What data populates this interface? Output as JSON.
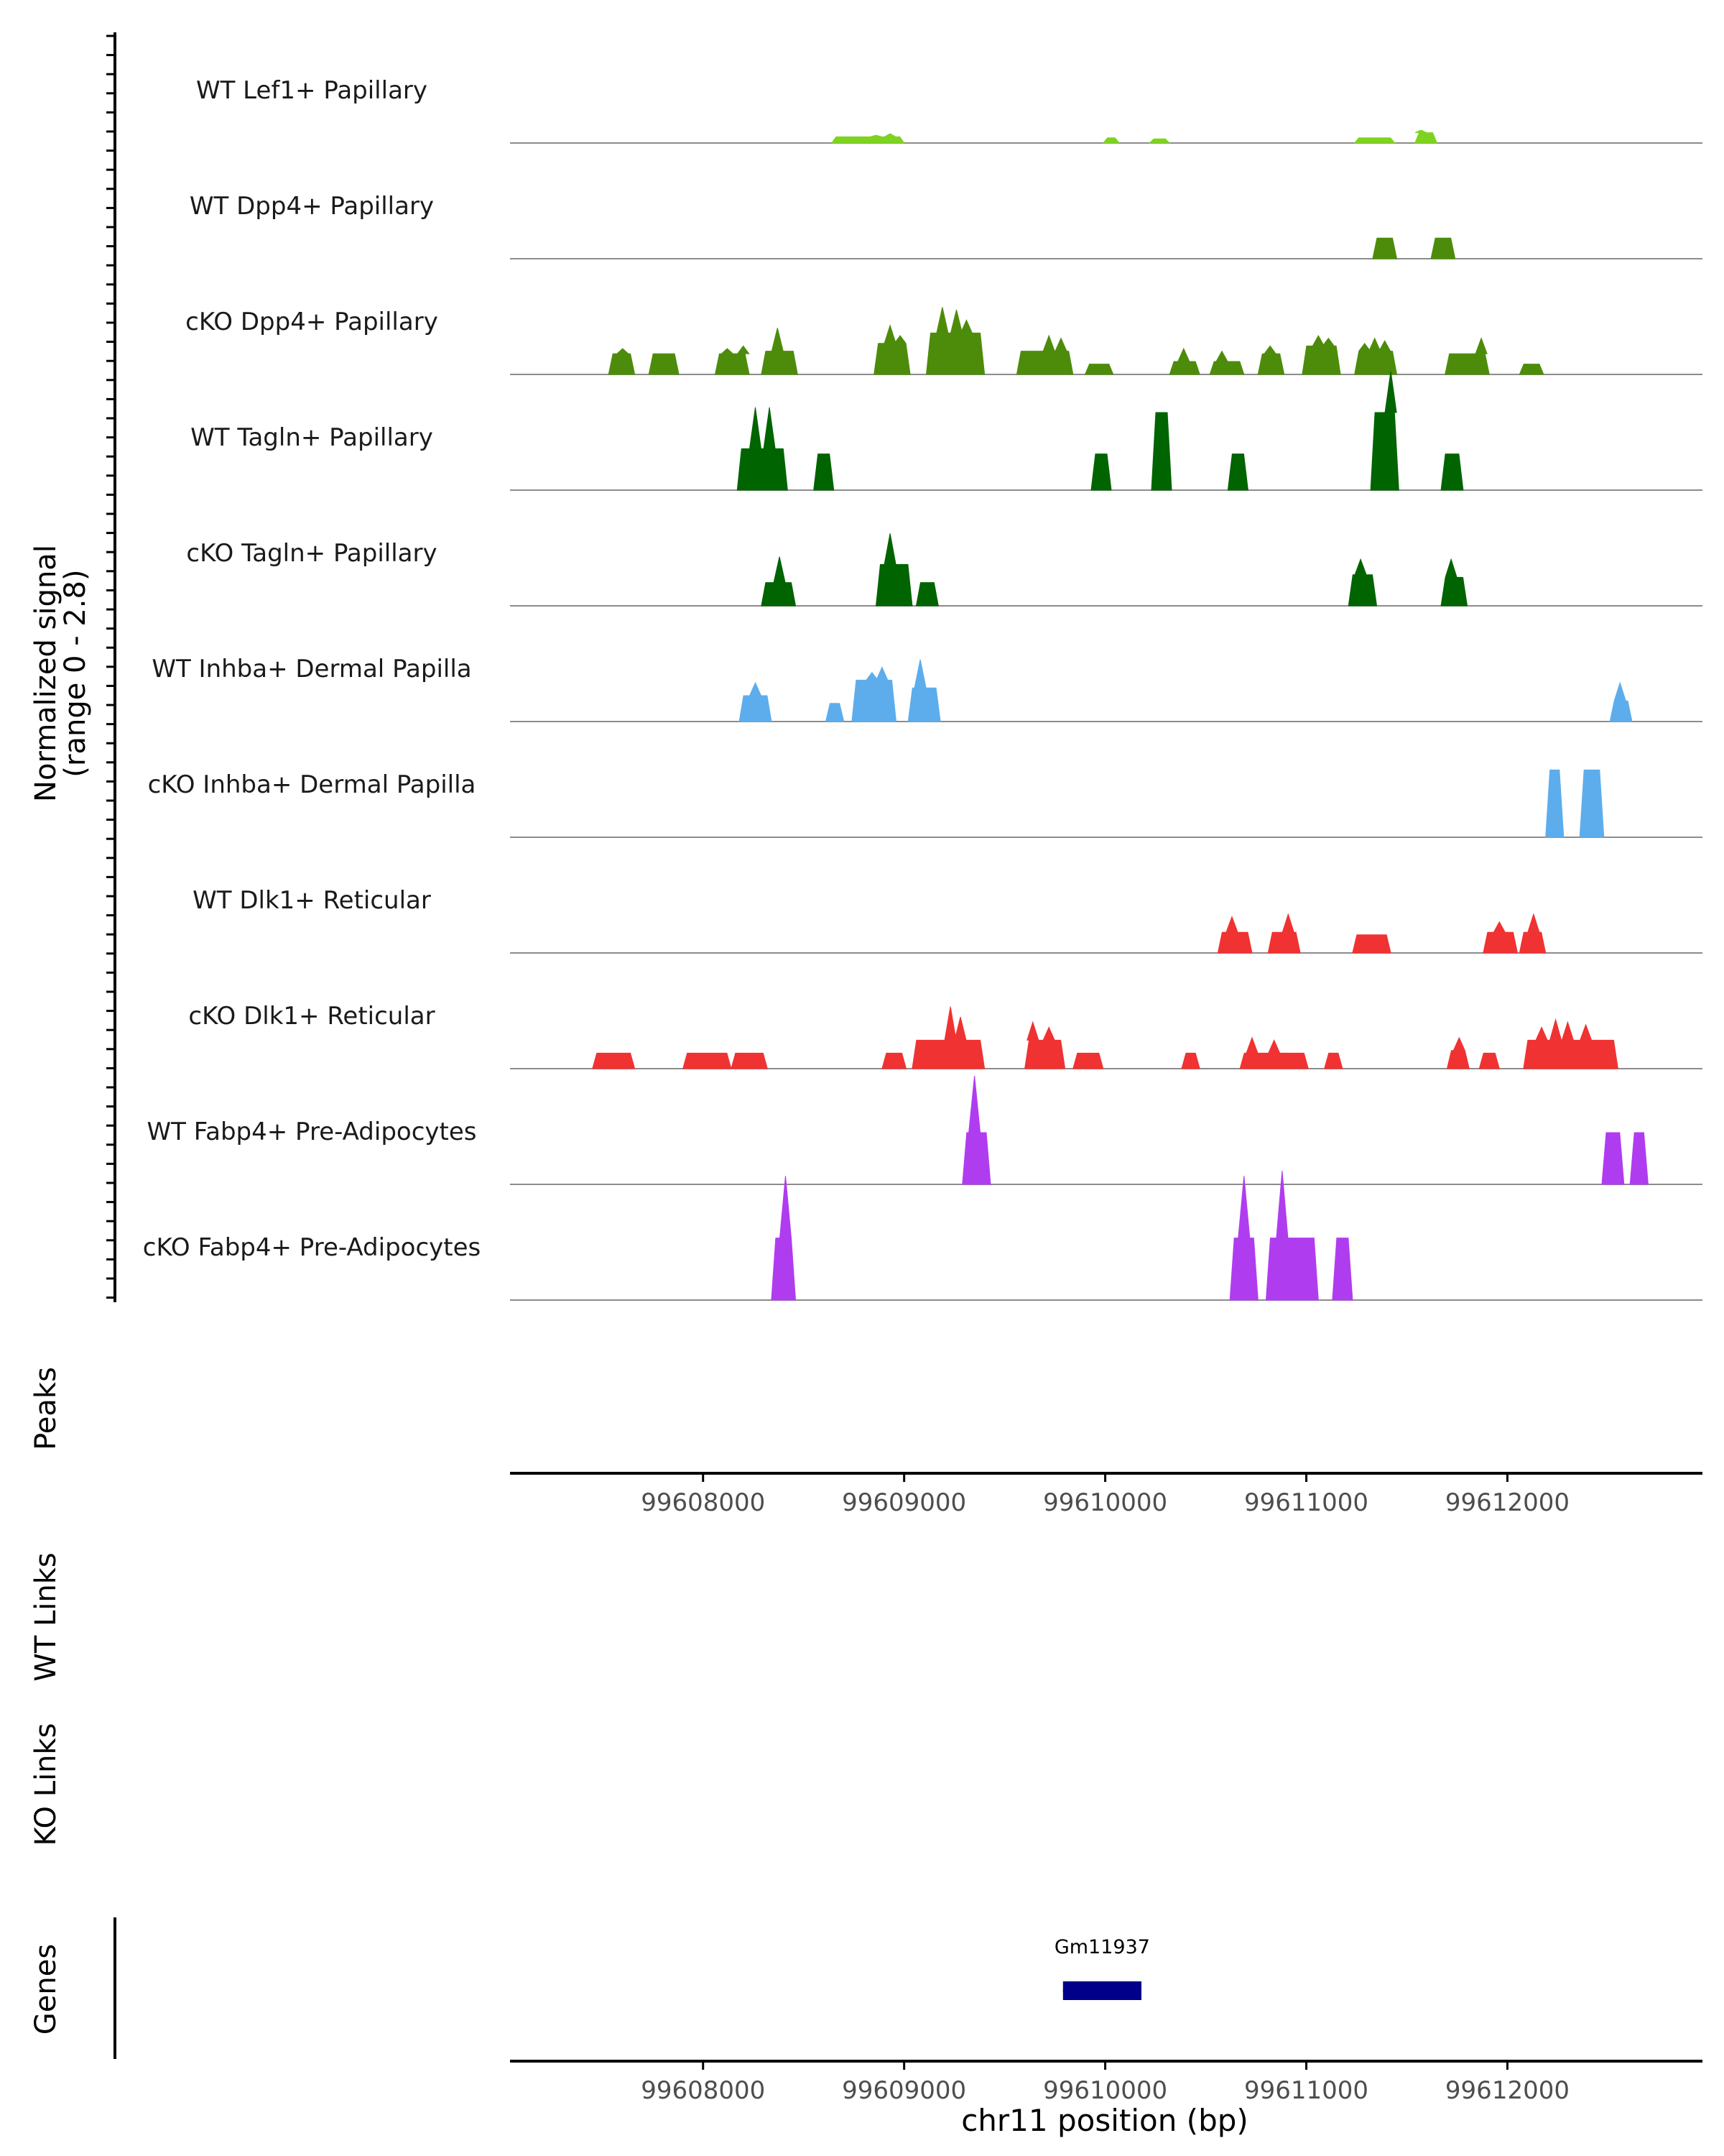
{
  "chart_data": {
    "type": "area",
    "title": "",
    "xlabel": "chr11 position (bp)",
    "signal_ylabel": [
      "Normalized signal",
      "(range 0 - 2.8)"
    ],
    "ylim": [
      0,
      2.8
    ],
    "xlim": [
      99607040,
      99612970
    ],
    "x_ticks": [
      99608000,
      99609000,
      99610000,
      99611000,
      99612000
    ],
    "x_tick_labels": [
      "99608000",
      "99609000",
      "99610000",
      "99611000",
      "99612000"
    ],
    "track_labels": {
      "peaks": "Peaks",
      "wt_links": "WT Links",
      "ko_links": "KO Links",
      "genes": "Genes"
    },
    "genes": [
      {
        "name": "Gm11937",
        "start": 99609790,
        "end": 99610180
      }
    ],
    "series": [
      {
        "name": "WT Lef1+ Papillary",
        "color": "#7ED321",
        "segments": [
          [
            99608640,
            99609000,
            0.12
          ],
          [
            99609990,
            99610070,
            0.1
          ],
          [
            99610220,
            99610320,
            0.08
          ],
          [
            99611240,
            99611440,
            0.1
          ],
          [
            99611540,
            99611650,
            0.2
          ]
        ],
        "spikes": [
          [
            99608860,
            0.15
          ],
          [
            99608930,
            0.18
          ],
          [
            99609000,
            0.12
          ],
          [
            99611570,
            0.25
          ]
        ]
      },
      {
        "name": "WT Dpp4+ Papillary",
        "color": "#4D8C0A",
        "segments": [
          [
            99611330,
            99611450,
            0.4
          ],
          [
            99611620,
            99611740,
            0.4
          ]
        ],
        "spikes": []
      },
      {
        "name": "cKO Dpp4+ Papillary",
        "color": "#4D8C0A",
        "segments": [
          [
            99607530,
            99607660,
            0.4
          ],
          [
            99607730,
            99607880,
            0.4
          ],
          [
            99608060,
            99608230,
            0.4
          ],
          [
            99608290,
            99608470,
            0.45
          ],
          [
            99608850,
            99609030,
            0.6
          ],
          [
            99609110,
            99609400,
            0.8
          ],
          [
            99609560,
            99609840,
            0.45
          ],
          [
            99609900,
            99610040,
            0.2
          ],
          [
            99610320,
            99610470,
            0.25
          ],
          [
            99610520,
            99610690,
            0.25
          ],
          [
            99610760,
            99610890,
            0.4
          ],
          [
            99610980,
            99611170,
            0.55
          ],
          [
            99611240,
            99611450,
            0.45
          ],
          [
            99611690,
            99611910,
            0.4
          ],
          [
            99612060,
            99612180,
            0.2
          ]
        ],
        "spikes": [
          [
            99607600,
            0.5
          ],
          [
            99608120,
            0.5
          ],
          [
            99608200,
            0.55
          ],
          [
            99608370,
            0.9
          ],
          [
            99608930,
            0.95
          ],
          [
            99608980,
            0.75
          ],
          [
            99609190,
            1.3
          ],
          [
            99609260,
            1.25
          ],
          [
            99609310,
            1.05
          ],
          [
            99609720,
            0.75
          ],
          [
            99609780,
            0.7
          ],
          [
            99610390,
            0.5
          ],
          [
            99610580,
            0.45
          ],
          [
            99610820,
            0.55
          ],
          [
            99611060,
            0.75
          ],
          [
            99611110,
            0.7
          ],
          [
            99611290,
            0.6
          ],
          [
            99611340,
            0.7
          ],
          [
            99611390,
            0.65
          ],
          [
            99611870,
            0.7
          ]
        ]
      },
      {
        "name": "WT Tagln+ Papillary",
        "color": "#006400",
        "segments": [
          [
            99608170,
            99608420,
            0.8
          ],
          [
            99608550,
            99608650,
            0.7
          ],
          [
            99609930,
            99610030,
            0.7
          ],
          [
            99610230,
            99610330,
            1.5
          ],
          [
            99610610,
            99610710,
            0.7
          ],
          [
            99611320,
            99611460,
            1.5
          ],
          [
            99611670,
            99611780,
            0.7
          ]
        ],
        "spikes": [
          [
            99608260,
            1.6
          ],
          [
            99608330,
            1.6
          ],
          [
            99611420,
            2.3
          ]
        ]
      },
      {
        "name": "cKO Tagln+ Papillary",
        "color": "#006400",
        "segments": [
          [
            99608290,
            99608460,
            0.45
          ],
          [
            99608860,
            99609040,
            0.8
          ],
          [
            99609060,
            99609170,
            0.45
          ],
          [
            99611210,
            99611350,
            0.6
          ],
          [
            99611670,
            99611800,
            0.55
          ]
        ],
        "spikes": [
          [
            99608380,
            0.95
          ],
          [
            99608930,
            1.4
          ],
          [
            99611270,
            0.9
          ],
          [
            99611720,
            0.9
          ]
        ]
      },
      {
        "name": "WT Inhba+ Dermal Papilla",
        "color": "#5DADEC",
        "segments": [
          [
            99608180,
            99608340,
            0.5
          ],
          [
            99608610,
            99608700,
            0.35
          ],
          [
            99608740,
            99608960,
            0.8
          ],
          [
            99609020,
            99609180,
            0.65
          ],
          [
            99612510,
            99612620,
            0.4
          ]
        ],
        "spikes": [
          [
            99608260,
            0.75
          ],
          [
            99608840,
            0.95
          ],
          [
            99608890,
            1.05
          ],
          [
            99609080,
            1.2
          ],
          [
            99612560,
            0.75
          ]
        ]
      },
      {
        "name": "cKO Inhba+ Dermal Papilla",
        "color": "#5DADEC",
        "segments": [
          [
            99612190,
            99612280,
            1.3
          ],
          [
            99612360,
            99612480,
            1.3
          ]
        ],
        "spikes": []
      },
      {
        "name": "WT Dlk1+ Reticular",
        "color": "#F03232",
        "segments": [
          [
            99610560,
            99610730,
            0.4
          ],
          [
            99610810,
            99610970,
            0.4
          ],
          [
            99611230,
            99611420,
            0.35
          ],
          [
            99611880,
            99612050,
            0.4
          ],
          [
            99612060,
            99612190,
            0.4
          ]
        ],
        "spikes": [
          [
            99610630,
            0.7
          ],
          [
            99610910,
            0.75
          ],
          [
            99611960,
            0.6
          ],
          [
            99612130,
            0.75
          ]
        ]
      },
      {
        "name": "cKO Dlk1+ Reticular",
        "color": "#F03232",
        "segments": [
          [
            99607450,
            99607660,
            0.3
          ],
          [
            99607900,
            99608140,
            0.3
          ],
          [
            99608140,
            99608320,
            0.3
          ],
          [
            99608890,
            99609010,
            0.3
          ],
          [
            99609040,
            99609400,
            0.55
          ],
          [
            99609600,
            99609800,
            0.55
          ],
          [
            99609840,
            99609990,
            0.3
          ],
          [
            99610380,
            99610470,
            0.3
          ],
          [
            99610670,
            99611010,
            0.3
          ],
          [
            99611090,
            99611180,
            0.3
          ],
          [
            99611700,
            99611810,
            0.35
          ],
          [
            99611860,
            99611960,
            0.3
          ],
          [
            99612080,
            99612550,
            0.55
          ]
        ],
        "spikes": [
          [
            99609230,
            1.2
          ],
          [
            99609280,
            1.0
          ],
          [
            99609640,
            0.9
          ],
          [
            99609720,
            0.8
          ],
          [
            99610730,
            0.6
          ],
          [
            99610840,
            0.55
          ],
          [
            99611760,
            0.6
          ],
          [
            99612170,
            0.8
          ],
          [
            99612240,
            0.95
          ],
          [
            99612300,
            0.9
          ],
          [
            99612390,
            0.85
          ]
        ]
      },
      {
        "name": "WT Fabp4+ Pre-Adipocytes",
        "color": "#B03CF0",
        "segments": [
          [
            99609290,
            99609430,
            1.0
          ],
          [
            99612470,
            99612580,
            1.0
          ],
          [
            99612610,
            99612700,
            1.0
          ]
        ],
        "spikes": [
          [
            99609350,
            2.1
          ]
        ]
      },
      {
        "name": "cKO Fabp4+ Pre-Adipocytes",
        "color": "#B03CF0",
        "segments": [
          [
            99608340,
            99608460,
            1.2
          ],
          [
            99610620,
            99610760,
            1.2
          ],
          [
            99610800,
            99611060,
            1.2
          ],
          [
            99611130,
            99611230,
            1.2
          ]
        ],
        "spikes": [
          [
            99608410,
            2.4
          ],
          [
            99610690,
            2.4
          ],
          [
            99610880,
            2.5
          ]
        ]
      }
    ]
  }
}
